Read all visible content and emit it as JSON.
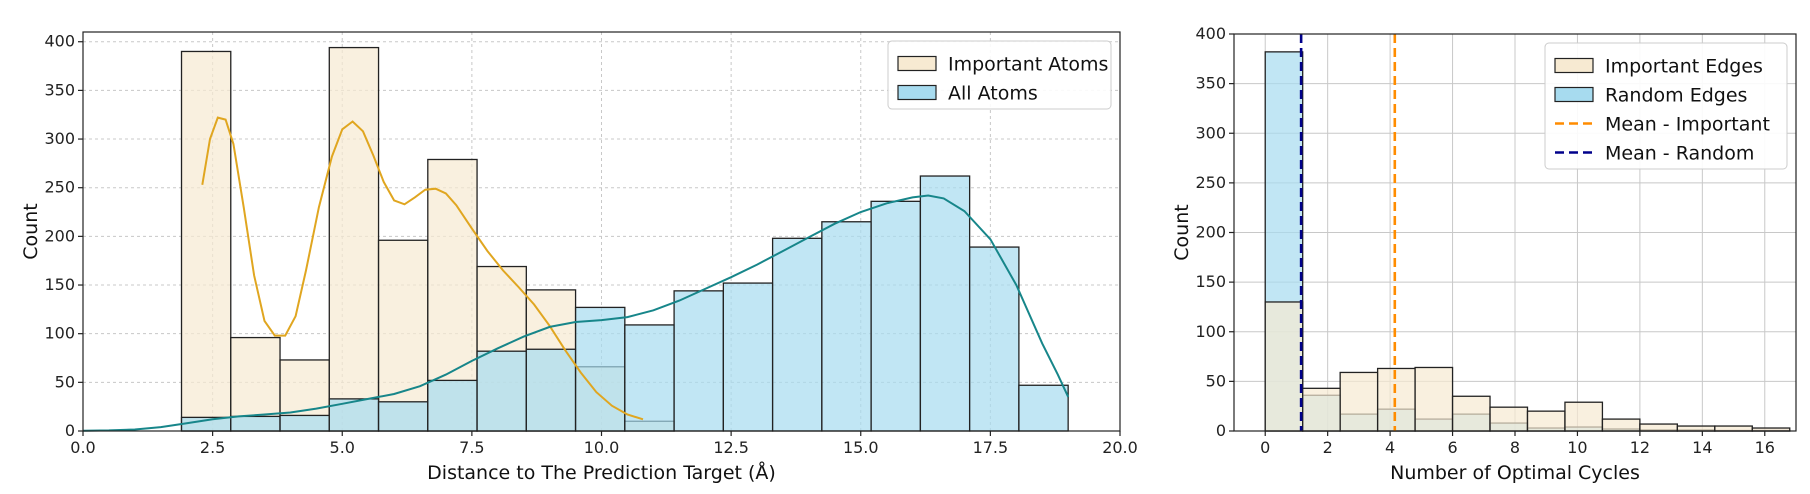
{
  "chart_data": [
    {
      "type": "histogram",
      "xlabel": "Distance to The Prediction Target (Å)",
      "ylabel": "Count",
      "xlim": [
        0,
        20
      ],
      "ylim": [
        0,
        410
      ],
      "xticks": [
        "0.0",
        "2.5",
        "5.0",
        "7.5",
        "10.0",
        "12.5",
        "15.0",
        "17.5",
        "20.0"
      ],
      "yticks": [
        "0",
        "50",
        "100",
        "150",
        "200",
        "250",
        "300",
        "350",
        "400"
      ],
      "grid": true,
      "legend_position": "top-right",
      "series": [
        {
          "name": "Important Atoms",
          "color": "#f7ead2",
          "line_color": "#e0a620",
          "bins": [
            [
              1.9,
              2.85,
              390
            ],
            [
              2.85,
              3.8,
              96
            ],
            [
              3.8,
              4.75,
              73
            ],
            [
              4.75,
              5.7,
              394
            ],
            [
              5.7,
              6.65,
              196
            ],
            [
              6.65,
              7.6,
              279
            ],
            [
              7.6,
              8.55,
              169
            ],
            [
              8.55,
              9.5,
              145
            ],
            [
              9.5,
              10.45,
              66
            ],
            [
              10.45,
              11.4,
              10
            ]
          ],
          "kde": [
            [
              2.3,
              253
            ],
            [
              2.45,
              300
            ],
            [
              2.6,
              322
            ],
            [
              2.75,
              320
            ],
            [
              2.9,
              295
            ],
            [
              3.1,
              230
            ],
            [
              3.3,
              160
            ],
            [
              3.5,
              113
            ],
            [
              3.7,
              98
            ],
            [
              3.9,
              98
            ],
            [
              4.1,
              118
            ],
            [
              4.3,
              165
            ],
            [
              4.55,
              230
            ],
            [
              4.8,
              282
            ],
            [
              5.0,
              310
            ],
            [
              5.2,
              318
            ],
            [
              5.4,
              308
            ],
            [
              5.6,
              283
            ],
            [
              5.8,
              256
            ],
            [
              6.0,
              237
            ],
            [
              6.2,
              233
            ],
            [
              6.4,
              240
            ],
            [
              6.6,
              248
            ],
            [
              6.8,
              249
            ],
            [
              7.0,
              244
            ],
            [
              7.2,
              232
            ],
            [
              7.5,
              208
            ],
            [
              7.8,
              185
            ],
            [
              8.1,
              165
            ],
            [
              8.4,
              148
            ],
            [
              8.7,
              130
            ],
            [
              9.0,
              108
            ],
            [
              9.3,
              83
            ],
            [
              9.6,
              60
            ],
            [
              9.9,
              40
            ],
            [
              10.2,
              26
            ],
            [
              10.5,
              17
            ],
            [
              10.8,
              12
            ]
          ]
        },
        {
          "name": "All Atoms",
          "color": "#a7dbef",
          "line_color": "#17868a",
          "bins": [
            [
              1.9,
              2.85,
              14
            ],
            [
              2.85,
              3.8,
              15
            ],
            [
              3.8,
              4.75,
              16
            ],
            [
              4.75,
              5.7,
              33
            ],
            [
              5.7,
              6.65,
              30
            ],
            [
              6.65,
              7.6,
              52
            ],
            [
              7.6,
              8.55,
              82
            ],
            [
              8.55,
              9.5,
              84
            ],
            [
              9.5,
              10.45,
              127
            ],
            [
              10.45,
              11.4,
              109
            ],
            [
              11.4,
              12.35,
              144
            ],
            [
              12.35,
              13.3,
              152
            ],
            [
              13.3,
              14.25,
              198
            ],
            [
              14.25,
              15.2,
              215
            ],
            [
              15.2,
              16.15,
              236
            ],
            [
              16.15,
              17.1,
              262
            ],
            [
              17.1,
              18.05,
              189
            ],
            [
              18.05,
              19.0,
              47
            ]
          ],
          "kde": [
            [
              0.0,
              0.3
            ],
            [
              0.5,
              0.6
            ],
            [
              1.0,
              1.5
            ],
            [
              1.5,
              4
            ],
            [
              2.0,
              8
            ],
            [
              2.5,
              12
            ],
            [
              3.0,
              15
            ],
            [
              3.5,
              17
            ],
            [
              4.0,
              19
            ],
            [
              4.5,
              23
            ],
            [
              5.0,
              28
            ],
            [
              5.5,
              33
            ],
            [
              6.0,
              38
            ],
            [
              6.5,
              46
            ],
            [
              7.0,
              58
            ],
            [
              7.5,
              72
            ],
            [
              8.0,
              85
            ],
            [
              8.5,
              97
            ],
            [
              9.0,
              107
            ],
            [
              9.5,
              112
            ],
            [
              10.0,
              114
            ],
            [
              10.5,
              117
            ],
            [
              11.0,
              124
            ],
            [
              11.5,
              134
            ],
            [
              12.0,
              146
            ],
            [
              12.5,
              158
            ],
            [
              13.0,
              171
            ],
            [
              13.5,
              185
            ],
            [
              14.0,
              199
            ],
            [
              14.5,
              213
            ],
            [
              15.0,
              225
            ],
            [
              15.5,
              234
            ],
            [
              16.0,
              240
            ],
            [
              16.3,
              242
            ],
            [
              16.6,
              239
            ],
            [
              17.0,
              226
            ],
            [
              17.5,
              197
            ],
            [
              18.0,
              150
            ],
            [
              18.5,
              90
            ],
            [
              18.8,
              58
            ],
            [
              19.0,
              35
            ]
          ]
        }
      ]
    },
    {
      "type": "histogram",
      "xlabel": "Number of Optimal Cycles",
      "ylabel": "Count",
      "xlim": [
        -1,
        17
      ],
      "ylim": [
        0,
        400
      ],
      "xticks": [
        "0",
        "2",
        "4",
        "6",
        "8",
        "10",
        "12",
        "14",
        "16"
      ],
      "yticks": [
        "0",
        "50",
        "100",
        "150",
        "200",
        "250",
        "300",
        "350",
        "400"
      ],
      "grid": true,
      "legend_position": "top-right",
      "series": [
        {
          "name": "Random Edges",
          "color": "#a7dbef",
          "bins": [
            [
              0,
              1.2,
              382
            ],
            [
              1.2,
              2.4,
              36
            ],
            [
              2.4,
              3.6,
              17
            ],
            [
              3.6,
              4.8,
              22
            ],
            [
              4.8,
              6.0,
              12
            ],
            [
              6.0,
              7.2,
              17
            ],
            [
              7.2,
              8.4,
              8
            ],
            [
              8.4,
              9.6,
              3
            ],
            [
              9.6,
              10.8,
              4
            ],
            [
              10.8,
              12.0,
              2
            ],
            [
              12.0,
              13.2,
              1
            ],
            [
              13.2,
              14.4,
              1
            ],
            [
              14.4,
              15.6,
              0.5
            ],
            [
              15.6,
              16.8,
              0.5
            ]
          ]
        },
        {
          "name": "Important Edges",
          "color": "#f7ead2",
          "bins": [
            [
              0,
              1.2,
              130
            ],
            [
              1.2,
              2.4,
              43
            ],
            [
              2.4,
              3.6,
              59
            ],
            [
              3.6,
              4.8,
              63
            ],
            [
              4.8,
              6.0,
              64
            ],
            [
              6.0,
              7.2,
              35
            ],
            [
              7.2,
              8.4,
              24
            ],
            [
              8.4,
              9.6,
              20
            ],
            [
              9.6,
              10.8,
              29
            ],
            [
              10.8,
              12.0,
              12
            ],
            [
              12.0,
              13.2,
              7
            ],
            [
              13.2,
              14.4,
              5
            ],
            [
              14.4,
              15.6,
              5
            ],
            [
              15.6,
              16.8,
              3
            ]
          ]
        }
      ],
      "mean_lines": [
        {
          "name": "Mean - Important",
          "value": 4.15,
          "color": "#ff8c00"
        },
        {
          "name": "Mean - Random",
          "value": 1.15,
          "color": "#00008b"
        }
      ],
      "legend_order": [
        "Important Edges",
        "Random Edges",
        "Mean - Important",
        "Mean - Random"
      ]
    }
  ]
}
